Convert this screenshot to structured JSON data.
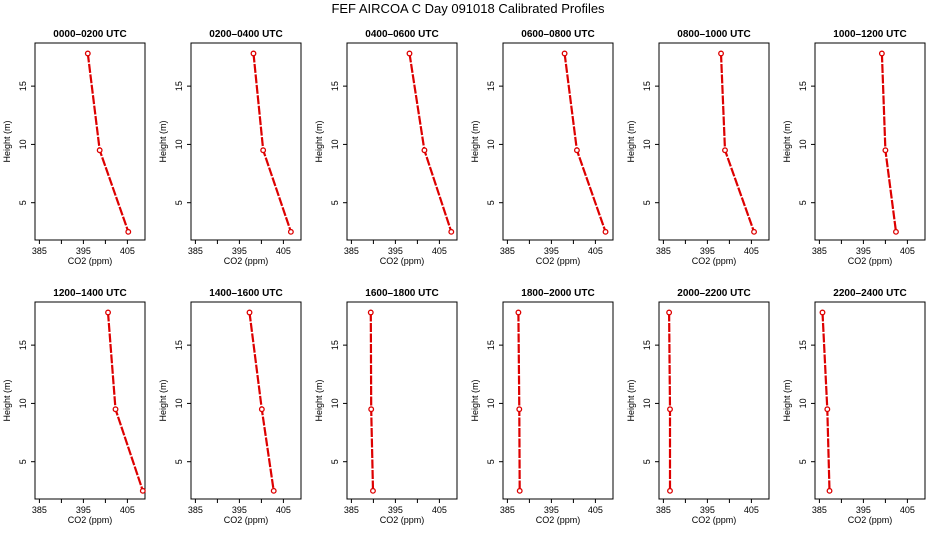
{
  "figure": {
    "title": "FEF AIRCOA C  Day 091018  Calibrated Profiles"
  },
  "chart_data": [
    {
      "type": "line",
      "title": "0000–0200 UTC",
      "xlabel": "CO2 (ppm)",
      "ylabel": "Height (m)",
      "xticks": [
        385,
        395,
        405
      ],
      "yticks": [
        5,
        10,
        15
      ],
      "xlim": [
        384,
        409
      ],
      "ylim": [
        1.8,
        18.7
      ],
      "series": [
        {
          "x": [
            396.0,
            398.7,
            405.2
          ],
          "y": [
            17.8,
            9.5,
            2.5
          ]
        }
      ],
      "grid": false
    },
    {
      "type": "line",
      "title": "0200–0400 UTC",
      "xlabel": "CO2 (ppm)",
      "ylabel": "Height (m)",
      "xticks": [
        385,
        395,
        405
      ],
      "yticks": [
        5,
        10,
        15
      ],
      "xlim": [
        384,
        409
      ],
      "ylim": [
        1.8,
        18.7
      ],
      "series": [
        {
          "x": [
            398.2,
            400.4,
            406.7
          ],
          "y": [
            17.8,
            9.5,
            2.5
          ]
        }
      ],
      "grid": false
    },
    {
      "type": "line",
      "title": "0400–0600 UTC",
      "xlabel": "CO2 (ppm)",
      "ylabel": "Height (m)",
      "xticks": [
        385,
        395,
        405
      ],
      "yticks": [
        5,
        10,
        15
      ],
      "xlim": [
        384,
        409
      ],
      "ylim": [
        1.8,
        18.7
      ],
      "series": [
        {
          "x": [
            398.2,
            401.6,
            407.7
          ],
          "y": [
            17.8,
            9.5,
            2.5
          ]
        }
      ],
      "grid": false
    },
    {
      "type": "line",
      "title": "0600–0800 UTC",
      "xlabel": "CO2 (ppm)",
      "ylabel": "Height (m)",
      "xticks": [
        385,
        395,
        405
      ],
      "yticks": [
        5,
        10,
        15
      ],
      "xlim": [
        384,
        409
      ],
      "ylim": [
        1.8,
        18.7
      ],
      "series": [
        {
          "x": [
            398.0,
            400.8,
            407.3
          ],
          "y": [
            17.8,
            9.5,
            2.5
          ]
        }
      ],
      "grid": false
    },
    {
      "type": "line",
      "title": "0800–1000 UTC",
      "xlabel": "CO2 (ppm)",
      "ylabel": "Height (m)",
      "xticks": [
        385,
        395,
        405
      ],
      "yticks": [
        5,
        10,
        15
      ],
      "xlim": [
        384,
        409
      ],
      "ylim": [
        1.8,
        18.7
      ],
      "series": [
        {
          "x": [
            398.1,
            399.0,
            405.6
          ],
          "y": [
            17.8,
            9.5,
            2.5
          ]
        }
      ],
      "grid": false
    },
    {
      "type": "line",
      "title": "1000–1200 UTC",
      "xlabel": "CO2 (ppm)",
      "ylabel": "Height (m)",
      "xticks": [
        385,
        395,
        405
      ],
      "yticks": [
        5,
        10,
        15
      ],
      "xlim": [
        384,
        409
      ],
      "ylim": [
        1.8,
        18.7
      ],
      "series": [
        {
          "x": [
            399.2,
            400.0,
            402.4
          ],
          "y": [
            17.8,
            9.5,
            2.5
          ]
        }
      ],
      "grid": false
    },
    {
      "type": "line",
      "title": "1200–1400 UTC",
      "xlabel": "CO2 (ppm)",
      "ylabel": "Height (m)",
      "xticks": [
        385,
        395,
        405
      ],
      "yticks": [
        5,
        10,
        15
      ],
      "xlim": [
        384,
        409
      ],
      "ylim": [
        1.8,
        18.7
      ],
      "series": [
        {
          "x": [
            400.6,
            402.3,
            408.5
          ],
          "y": [
            17.8,
            9.5,
            2.5
          ]
        }
      ],
      "grid": false
    },
    {
      "type": "line",
      "title": "1400–1600 UTC",
      "xlabel": "CO2 (ppm)",
      "ylabel": "Height (m)",
      "xticks": [
        385,
        395,
        405
      ],
      "yticks": [
        5,
        10,
        15
      ],
      "xlim": [
        384,
        409
      ],
      "ylim": [
        1.8,
        18.7
      ],
      "series": [
        {
          "x": [
            397.3,
            400.1,
            402.8
          ],
          "y": [
            17.8,
            9.5,
            2.5
          ]
        }
      ],
      "grid": false
    },
    {
      "type": "line",
      "title": "1600–1800 UTC",
      "xlabel": "CO2 (ppm)",
      "ylabel": "Height (m)",
      "xticks": [
        385,
        395,
        405
      ],
      "yticks": [
        5,
        10,
        15
      ],
      "xlim": [
        384,
        409
      ],
      "ylim": [
        1.8,
        18.7
      ],
      "series": [
        {
          "x": [
            389.4,
            389.5,
            389.9
          ],
          "y": [
            17.8,
            9.5,
            2.5
          ]
        }
      ],
      "grid": false
    },
    {
      "type": "line",
      "title": "1800–2000 UTC",
      "xlabel": "CO2 (ppm)",
      "ylabel": "Height (m)",
      "xticks": [
        385,
        395,
        405
      ],
      "yticks": [
        5,
        10,
        15
      ],
      "xlim": [
        384,
        409
      ],
      "ylim": [
        1.8,
        18.7
      ],
      "series": [
        {
          "x": [
            387.5,
            387.7,
            387.8
          ],
          "y": [
            17.8,
            9.5,
            2.5
          ]
        }
      ],
      "grid": false
    },
    {
      "type": "line",
      "title": "2000–2200 UTC",
      "xlabel": "CO2 (ppm)",
      "ylabel": "Height (m)",
      "xticks": [
        385,
        395,
        405
      ],
      "yticks": [
        5,
        10,
        15
      ],
      "xlim": [
        384,
        409
      ],
      "ylim": [
        1.8,
        18.7
      ],
      "series": [
        {
          "x": [
            386.3,
            386.5,
            386.5
          ],
          "y": [
            17.8,
            9.5,
            2.5
          ]
        }
      ],
      "grid": false
    },
    {
      "type": "line",
      "title": "2200–2400 UTC",
      "xlabel": "CO2 (ppm)",
      "ylabel": "Height (m)",
      "xticks": [
        385,
        395,
        405
      ],
      "yticks": [
        5,
        10,
        15
      ],
      "xlim": [
        384,
        409
      ],
      "ylim": [
        1.8,
        18.7
      ],
      "series": [
        {
          "x": [
            385.7,
            386.8,
            387.3
          ],
          "y": [
            17.8,
            9.5,
            2.5
          ]
        }
      ],
      "grid": false
    }
  ],
  "colors": {
    "series": "#dd0000",
    "axis": "#000000"
  }
}
